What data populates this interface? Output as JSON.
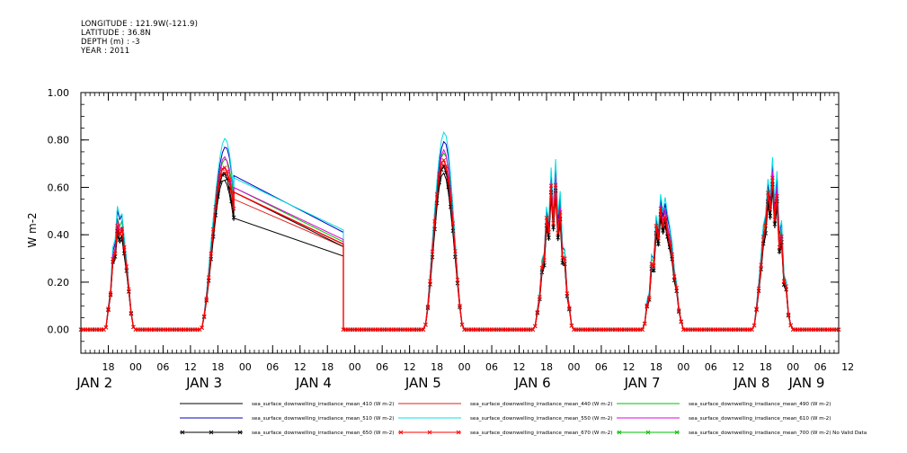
{
  "header": {
    "longitude": "LONGITUDE : 121.9W(-121.9)",
    "latitude": "LATITUDE : 36.8N",
    "depth": "DEPTH (m) : -3",
    "year": "YEAR : 2011"
  },
  "chart_data": {
    "type": "line",
    "ylabel": "W m-2",
    "ylim": [
      -0.1,
      1.0
    ],
    "yticks": [
      0.0,
      0.2,
      0.4,
      0.6,
      0.8,
      1.0
    ],
    "ytick_labels": [
      "0.00",
      "0.20",
      "0.40",
      "0.60",
      "0.80",
      "1.00"
    ],
    "x_start_hours": 0,
    "x_end_hours": 166,
    "hour_tick_labels": [
      "18",
      "00",
      "06",
      "12",
      "18",
      "00",
      "06",
      "12",
      "18",
      "00",
      "06",
      "12",
      "18",
      "00",
      "06",
      "12",
      "18",
      "00",
      "06",
      "12",
      "18",
      "00",
      "06",
      "12",
      "18",
      "00",
      "06",
      "12"
    ],
    "hour_tick_hours": [
      6,
      12,
      18,
      24,
      30,
      36,
      42,
      48,
      54,
      60,
      66,
      72,
      78,
      84,
      90,
      96,
      102,
      108,
      114,
      120,
      126,
      132,
      138,
      144,
      150,
      156,
      162,
      168
    ],
    "day_labels": [
      {
        "text": "JAN  2",
        "hour": 3
      },
      {
        "text": "JAN  3",
        "hour": 27
      },
      {
        "text": "JAN  4",
        "hour": 51
      },
      {
        "text": "JAN  5",
        "hour": 75
      },
      {
        "text": "JAN  6",
        "hour": 99
      },
      {
        "text": "JAN  7",
        "hour": 123
      },
      {
        "text": "JAN  8",
        "hour": 147
      },
      {
        "text": "JAN  9",
        "hour": 159
      }
    ],
    "gap": {
      "from_hour": 33.5,
      "to_hour": 57.5
    },
    "days": [
      {
        "noon": 8.5,
        "peak": 0.5,
        "width": 3.2,
        "spiky": true
      },
      {
        "noon": 31.5,
        "peak": 0.77,
        "width": 5.2,
        "spiky": false
      },
      {
        "noon": 79.5,
        "peak": 0.8,
        "width": 4.3,
        "spiky": false
      },
      {
        "noon": 103.5,
        "peak": 0.8,
        "width": 4.3,
        "spiky": true
      },
      {
        "noon": 127.5,
        "peak": 0.72,
        "width": 4.5,
        "spiky": true
      },
      {
        "noon": 151.5,
        "peak": 0.83,
        "width": 4.3,
        "spiky": true
      }
    ],
    "series": [
      {
        "name": "sea_surface_downwelling_irradiance_mean_410 (W m-2)",
        "color": "#000000",
        "scale": 0.82,
        "gap_start": 0.47,
        "gap_end": 0.31,
        "marker": false
      },
      {
        "name": "sea_surface_downwelling_irradiance_mean_440 (W m-2)",
        "color": "#e02020",
        "scale": 0.88,
        "gap_start": 0.55,
        "gap_end": 0.35,
        "marker": false
      },
      {
        "name": "sea_surface_downwelling_irradiance_mean_490 (W m-2)",
        "color": "#00c000",
        "scale": 0.95,
        "gap_start": 0.6,
        "gap_end": 0.37,
        "marker": false
      },
      {
        "name": "sea_surface_downwelling_irradiance_mean_510 (W m-2)",
        "color": "#0000c0",
        "scale": 1.0,
        "gap_start": 0.65,
        "gap_end": 0.41,
        "marker": false
      },
      {
        "name": "sea_surface_downwelling_irradiance_mean_550 (W m-2)",
        "color": "#00e0e0",
        "scale": 1.03,
        "gap_start": 0.64,
        "gap_end": 0.42,
        "marker": false
      },
      {
        "name": "sea_surface_downwelling_irradiance_mean_610 (W m-2)",
        "color": "#e000e0",
        "scale": 0.93,
        "gap_start": 0.6,
        "gap_end": 0.38,
        "marker": false
      },
      {
        "name": "sea_surface_downwelling_irradiance_mean_650 (W m-2)",
        "color": "#000000",
        "scale": 0.85,
        "gap_start": 0.58,
        "gap_end": 0.35,
        "marker": true
      },
      {
        "name": "sea_surface_downwelling_irradiance_mean_670 (W m-2)",
        "color": "#ff0000",
        "scale": 0.9,
        "gap_start": 0.58,
        "gap_end": 0.36,
        "marker": true
      },
      {
        "name": "sea_surface_downwelling_irradiance_mean_700 (W m-2) No Valid Data",
        "color": "#00c000",
        "scale": 0,
        "marker": true,
        "no_data": true
      }
    ]
  }
}
